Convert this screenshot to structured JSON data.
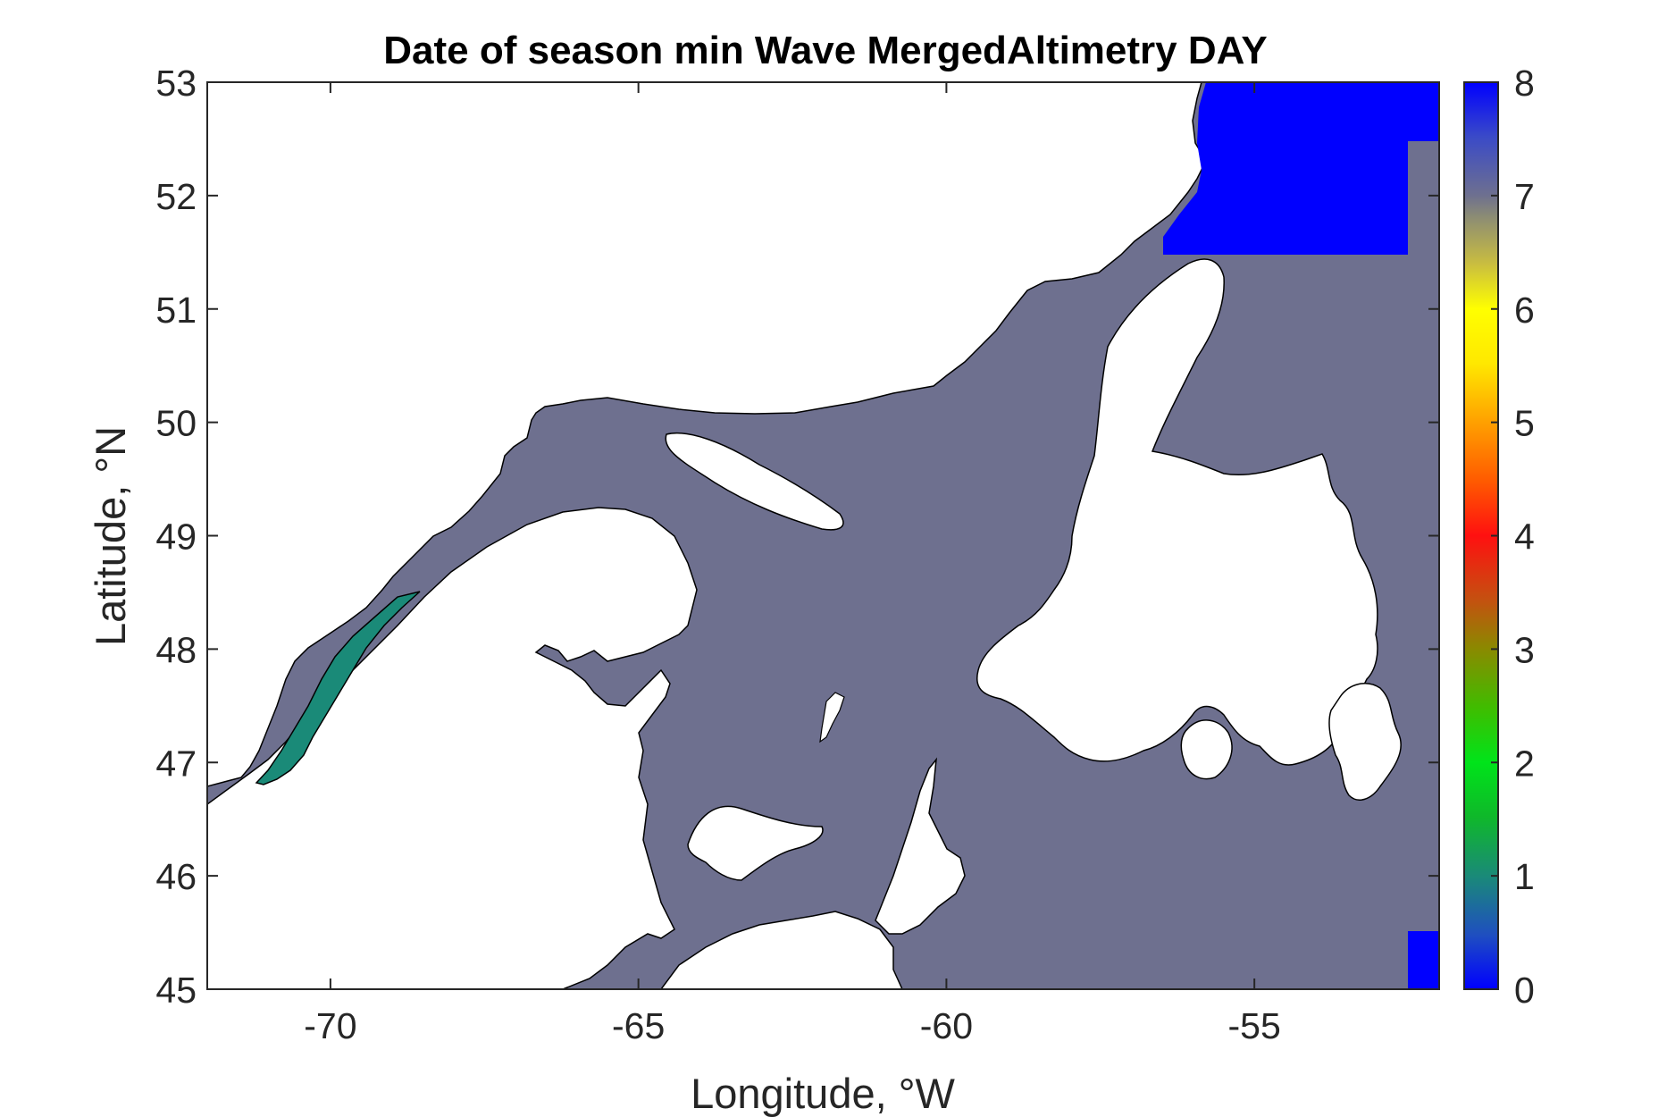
{
  "figure": {
    "title": "Date of season min Wave MergedAltimetry DAY",
    "xlabel": "Longitude, °W",
    "ylabel": "Latitude, °N"
  },
  "chart_data": {
    "type": "heatmap",
    "title": "Date of season min Wave MergedAltimetry DAY",
    "xlabel": "Longitude, °W",
    "ylabel": "Latitude, °N",
    "xlim": [
      -72,
      -52
    ],
    "ylim": [
      45,
      53
    ],
    "x_ticks": [
      -70,
      -65,
      -60,
      -55
    ],
    "y_ticks": [
      45,
      46,
      47,
      48,
      49,
      50,
      51,
      52,
      53
    ],
    "colorbar": {
      "range": [
        0,
        8
      ],
      "ticks": [
        0,
        1,
        2,
        3,
        4,
        5,
        6,
        7,
        8
      ],
      "colormap": "jet-like (blue-green-yellow-red-grey-blue)"
    },
    "regions": [
      {
        "area": "Gulf of St. Lawrence and open ocean",
        "value": 7.0,
        "color": "#6e708f"
      },
      {
        "area": "St. Lawrence Estuary (west of ~-69)",
        "value": 1.0,
        "color": "#1a8a78"
      },
      {
        "area": "Northeast (Labrador coast, lat 51.5-53)",
        "value": 0.0,
        "color": "#0000ff"
      },
      {
        "area": "Southeast corner (lat 45-45.5)",
        "value": 0.0,
        "color": "#0000ff"
      }
    ],
    "colors": {
      "ocean": "#6e708f",
      "estuary": "#1a8a78",
      "blue_zone": "#0000ff",
      "land": "#ffffff"
    }
  }
}
